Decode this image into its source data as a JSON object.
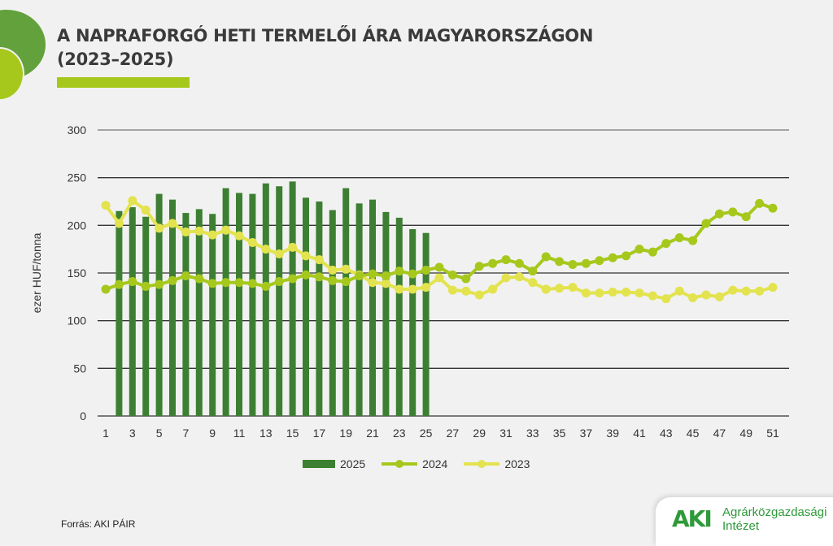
{
  "title_line1": "A NAPRAFORGÓ HETI TERMELŐI ÁRA MAGYARORSZÁGON",
  "title_line2": "(2023–2025)",
  "source": "Forrás: AKI PÁIR",
  "logo": {
    "mark": "AKI",
    "line1": "Agrárközgazdasági",
    "line2": "Intézet"
  },
  "colors": {
    "bar2025": "#3d7f32",
    "line2024": "#a6c81c",
    "line2023": "#e2e34e"
  },
  "chart_data": {
    "type": "bar+line",
    "title": "A NAPRAFORGÓ HETI TERMELŐI ÁRA MAGYARORSZÁGON (2023–2025)",
    "ylabel": "ezer HUF/tonna",
    "xlabel": "",
    "ylim": [
      0,
      300
    ],
    "yticks": [
      0,
      50,
      100,
      150,
      200,
      250,
      300
    ],
    "xticks": [
      1,
      3,
      5,
      7,
      9,
      11,
      13,
      15,
      17,
      19,
      21,
      23,
      25,
      27,
      29,
      31,
      33,
      35,
      37,
      39,
      41,
      43,
      45,
      47,
      49,
      51
    ],
    "legend": [
      "2025",
      "2024",
      "2023"
    ],
    "legend_position": "bottom",
    "series": [
      {
        "name": "2025",
        "type": "bar",
        "start_week": 2,
        "values": [
          215,
          219,
          209,
          233,
          227,
          213,
          217,
          212,
          239,
          234,
          233,
          244,
          241,
          246,
          229,
          225,
          216,
          239,
          223,
          227,
          214,
          208,
          196,
          192
        ]
      },
      {
        "name": "2024",
        "type": "line",
        "start_week": 1,
        "values": [
          133,
          138,
          141,
          136,
          138,
          142,
          147,
          144,
          139,
          140,
          140,
          139,
          136,
          141,
          144,
          148,
          146,
          142,
          141,
          147,
          149,
          147,
          152,
          149,
          153,
          156,
          148,
          144,
          157,
          160,
          164,
          160,
          152,
          167,
          162,
          159,
          160,
          163,
          166,
          168,
          175,
          172,
          181,
          187,
          184,
          202,
          212,
          214,
          209,
          223,
          218
        ]
      },
      {
        "name": "2023",
        "type": "line",
        "start_week": 1,
        "values": [
          221,
          202,
          226,
          216,
          197,
          202,
          193,
          194,
          190,
          195,
          189,
          182,
          175,
          170,
          177,
          168,
          164,
          153,
          154,
          148,
          140,
          139,
          133,
          133,
          135,
          145,
          132,
          131,
          127,
          133,
          145,
          146,
          140,
          133,
          134,
          135,
          129,
          129,
          130,
          130,
          129,
          126,
          123,
          131,
          124,
          127,
          125,
          132,
          131,
          131,
          135
        ]
      }
    ]
  }
}
